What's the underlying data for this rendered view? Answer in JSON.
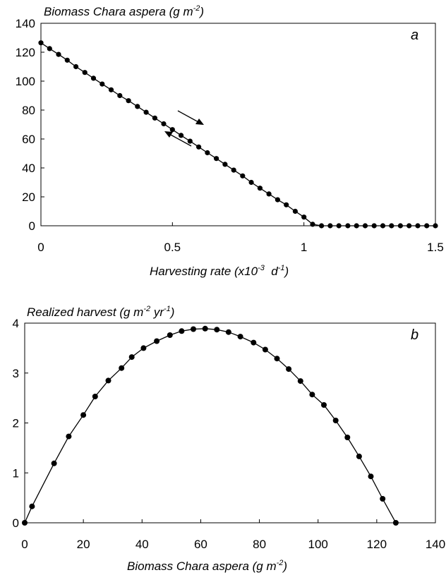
{
  "chart_data": [
    {
      "type": "line",
      "panel_label": "a",
      "title": {
        "main": "Biomass Chara aspera (g m",
        "sup": "-2",
        "tail": ")"
      },
      "xlabel": {
        "main": "Harvesting rate (x10",
        "sup1": "-3",
        "mid": "  d",
        "sup2": "-1",
        "tail": ")"
      },
      "xlim": [
        0,
        1.5
      ],
      "ylim": [
        0,
        140
      ],
      "x_ticks": [
        "0",
        "0.5",
        "1",
        "1.5"
      ],
      "y_ticks": [
        "0",
        "20",
        "40",
        "60",
        "80",
        "100",
        "120",
        "140"
      ],
      "annotations": [
        "arrow-forward",
        "arrow-backward"
      ],
      "series": [
        {
          "x": [
            0,
            0.033,
            0.067,
            0.1,
            0.133,
            0.167,
            0.2,
            0.233,
            0.267,
            0.3,
            0.333,
            0.367,
            0.4,
            0.433,
            0.467,
            0.5,
            0.533,
            0.567,
            0.6,
            0.633,
            0.667,
            0.7,
            0.733,
            0.767,
            0.8,
            0.833,
            0.867,
            0.9,
            0.933,
            0.967,
            1.0,
            1.033,
            1.067,
            1.1,
            1.133,
            1.167,
            1.2,
            1.233,
            1.267,
            1.3,
            1.333,
            1.367,
            1.4,
            1.433,
            1.467,
            1.5
          ],
          "y": [
            126.5,
            122.5,
            118.5,
            114.5,
            110,
            106,
            102,
            98,
            94,
            90,
            86.5,
            82.5,
            78.5,
            74.5,
            70.5,
            66.5,
            62.5,
            58.5,
            54.5,
            50.5,
            46.5,
            42.5,
            38.5,
            34.5,
            30,
            26,
            22,
            18,
            14.5,
            10,
            6,
            1,
            0,
            0,
            0,
            0,
            0,
            0,
            0,
            0,
            0,
            0,
            0,
            0,
            0,
            0
          ]
        }
      ]
    },
    {
      "type": "line",
      "panel_label": "b",
      "title": {
        "main": "Realized harvest (g m",
        "sup1": "-2",
        "mid": " yr",
        "sup2": "-1",
        "tail": ")"
      },
      "xlabel": {
        "main": "Biomass Chara aspera (g m",
        "sup": "-2",
        "tail": ")"
      },
      "xlim": [
        0,
        140
      ],
      "ylim": [
        0,
        4
      ],
      "x_ticks": [
        "0",
        "20",
        "40",
        "60",
        "80",
        "100",
        "120",
        "140"
      ],
      "y_ticks": [
        "0",
        "1",
        "2",
        "3",
        "4"
      ],
      "series": [
        {
          "x": [
            0,
            2.5,
            10,
            15,
            20,
            24,
            28.5,
            33,
            36.5,
            40.5,
            45,
            49.5,
            53.5,
            57.5,
            61.5,
            65.5,
            69.5,
            73.5,
            78,
            82,
            86,
            90,
            94,
            98,
            102,
            106,
            110,
            114,
            118,
            122,
            126.5
          ],
          "y": [
            0,
            0.33,
            1.19,
            1.73,
            2.16,
            2.53,
            2.85,
            3.1,
            3.32,
            3.5,
            3.64,
            3.76,
            3.84,
            3.88,
            3.89,
            3.87,
            3.82,
            3.73,
            3.61,
            3.47,
            3.29,
            3.08,
            2.84,
            2.57,
            2.36,
            2.05,
            1.71,
            1.33,
            0.93,
            0.48,
            0
          ]
        }
      ]
    }
  ]
}
